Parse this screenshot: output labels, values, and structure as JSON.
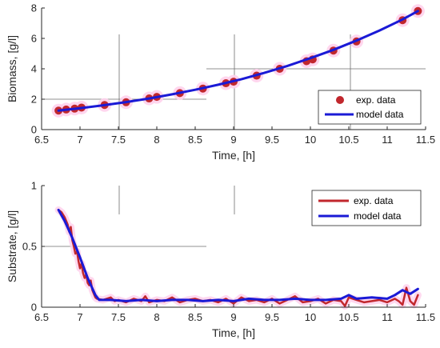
{
  "colors": {
    "exp": "#c1272d",
    "model": "#1a1ad6",
    "glow": "#ffd1ec",
    "axis": "#262626",
    "guide": "#6e6e6e"
  },
  "chart_data": [
    {
      "type": "scatter",
      "title": "",
      "xlabel": "Time, [h]",
      "ylabel": "Biomass, [g/l]",
      "xlim": [
        6.5,
        11.5
      ],
      "ylim": [
        0,
        8
      ],
      "xticks": [
        "6.5",
        "7",
        "7.5",
        "8",
        "8.5",
        "9",
        "9.5",
        "10",
        "10.5",
        "11",
        "11.5"
      ],
      "yticks": [
        "0",
        "2",
        "4",
        "6",
        "8"
      ],
      "grid": false,
      "legend": "bottom-right",
      "series": [
        {
          "name": "exp. data",
          "style": "markers",
          "x": [
            6.72,
            6.82,
            6.93,
            7.02,
            7.32,
            7.6,
            7.9,
            8.0,
            8.3,
            8.6,
            8.9,
            9.0,
            9.3,
            9.6,
            9.95,
            10.03,
            10.3,
            10.6,
            11.2,
            11.4
          ],
          "y": [
            1.25,
            1.32,
            1.38,
            1.45,
            1.62,
            1.8,
            2.05,
            2.15,
            2.4,
            2.7,
            3.05,
            3.15,
            3.55,
            4.0,
            4.5,
            4.62,
            5.2,
            5.8,
            7.2,
            7.8
          ]
        },
        {
          "name": "model data",
          "style": "line",
          "x": [
            6.72,
            7.0,
            7.3,
            7.6,
            7.9,
            8.2,
            8.5,
            8.8,
            9.1,
            9.4,
            9.7,
            10.0,
            10.3,
            10.6,
            10.9,
            11.2,
            11.4
          ],
          "y": [
            1.25,
            1.41,
            1.6,
            1.81,
            2.05,
            2.32,
            2.62,
            2.95,
            3.31,
            3.73,
            4.19,
            4.7,
            5.25,
            5.86,
            6.52,
            7.25,
            7.8
          ]
        }
      ]
    },
    {
      "type": "line",
      "title": "",
      "xlabel": "Time, [h]",
      "ylabel": "Substrate, [g/l]",
      "xlim": [
        6.5,
        11.5
      ],
      "ylim": [
        0,
        1
      ],
      "xticks": [
        "6.5",
        "7",
        "7.5",
        "8",
        "8.5",
        "9",
        "9.5",
        "10",
        "10.5",
        "11",
        "11.5"
      ],
      "yticks": [
        "0",
        "0.5",
        "1"
      ],
      "grid": false,
      "legend": "top-right",
      "series": [
        {
          "name": "exp. data",
          "style": "line",
          "x": [
            6.72,
            6.76,
            6.8,
            6.84,
            6.86,
            6.88,
            6.9,
            6.92,
            6.94,
            6.96,
            6.98,
            7.0,
            7.02,
            7.04,
            7.06,
            7.08,
            7.1,
            7.12,
            7.14,
            7.16,
            7.18,
            7.2,
            7.22,
            7.3,
            7.4,
            7.45,
            7.5,
            7.6,
            7.7,
            7.8,
            7.85,
            7.9,
            8.0,
            8.1,
            8.2,
            8.3,
            8.4,
            8.5,
            8.6,
            8.7,
            8.8,
            8.9,
            9.0,
            9.1,
            9.2,
            9.3,
            9.4,
            9.5,
            9.6,
            9.7,
            9.8,
            9.9,
            10.0,
            10.1,
            10.2,
            10.3,
            10.4,
            10.45,
            10.5,
            10.6,
            10.7,
            10.8,
            10.9,
            11.0,
            11.1,
            11.15,
            11.2,
            11.25,
            11.3,
            11.35,
            11.4
          ],
          "y": [
            0.8,
            0.78,
            0.74,
            0.68,
            0.62,
            0.66,
            0.55,
            0.5,
            0.44,
            0.46,
            0.38,
            0.32,
            0.36,
            0.28,
            0.24,
            0.27,
            0.2,
            0.18,
            0.22,
            0.14,
            0.11,
            0.08,
            0.07,
            0.06,
            0.08,
            0.05,
            0.06,
            0.04,
            0.07,
            0.05,
            0.09,
            0.04,
            0.06,
            0.05,
            0.08,
            0.04,
            0.06,
            0.07,
            0.05,
            0.06,
            0.04,
            0.07,
            0.03,
            0.08,
            0.05,
            0.06,
            0.04,
            0.07,
            0.03,
            0.06,
            0.09,
            0.04,
            0.05,
            0.07,
            0.03,
            0.06,
            0.05,
            0.01,
            0.08,
            0.06,
            0.04,
            0.05,
            0.06,
            0.04,
            0.07,
            0.05,
            0.02,
            0.16,
            0.05,
            0.02,
            0.1
          ]
        },
        {
          "name": "model data",
          "style": "line",
          "x": [
            6.72,
            6.8,
            6.9,
            7.0,
            7.1,
            7.2,
            7.25,
            7.4,
            7.6,
            7.8,
            8.0,
            8.2,
            8.4,
            8.6,
            8.8,
            9.0,
            9.2,
            9.4,
            9.6,
            9.8,
            10.0,
            10.2,
            10.4,
            10.5,
            10.6,
            10.8,
            11.0,
            11.1,
            11.2,
            11.3,
            11.4
          ],
          "y": [
            0.8,
            0.71,
            0.57,
            0.41,
            0.24,
            0.1,
            0.06,
            0.06,
            0.05,
            0.06,
            0.05,
            0.06,
            0.06,
            0.05,
            0.06,
            0.05,
            0.07,
            0.06,
            0.06,
            0.07,
            0.06,
            0.06,
            0.07,
            0.1,
            0.07,
            0.08,
            0.07,
            0.1,
            0.14,
            0.11,
            0.15
          ]
        }
      ]
    }
  ]
}
